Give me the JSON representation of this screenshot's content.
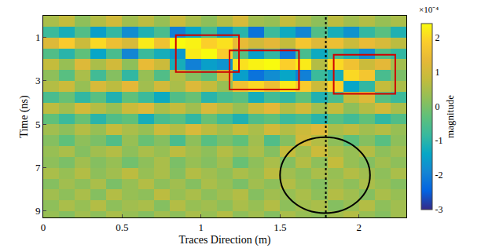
{
  "chart_data": {
    "type": "heatmap",
    "x_label": "Traces Direction (m)",
    "y_label": "Time (ns)",
    "colorbar_label": "magnitude",
    "colorbar_exponent": "×10⁻⁴",
    "grid": false,
    "xlim": [
      0,
      2.3
    ],
    "xticks": [
      0,
      0.5,
      1,
      1.5,
      2
    ],
    "ylim": [
      9.3,
      0
    ],
    "yticks": [
      1,
      3,
      5,
      7,
      9
    ],
    "zlim": [
      -3,
      2.4
    ],
    "zticks": [
      -3,
      -2,
      -1,
      0,
      1,
      2
    ],
    "x": [
      0.05,
      0.15,
      0.25,
      0.35,
      0.45,
      0.55,
      0.65,
      0.75,
      0.85,
      0.95,
      1.05,
      1.15,
      1.25,
      1.35,
      1.45,
      1.55,
      1.65,
      1.75,
      1.85,
      1.95,
      2.05,
      2.15,
      2.25
    ],
    "y": [
      0.25,
      0.75,
      1.25,
      1.75,
      2.25,
      2.75,
      3.25,
      3.75,
      4.25,
      4.75,
      5.25,
      5.75,
      6.25,
      6.75,
      7.25,
      7.75,
      8.25,
      8.75,
      9.25
    ],
    "z": [
      [
        0.5,
        0.8,
        0.2,
        0.6,
        1.0,
        0.4,
        0.7,
        0.3,
        0.9,
        0.5,
        0.2,
        0.6,
        1.1,
        0.4,
        0.3,
        0.8,
        0.5,
        0.2,
        0.7,
        0.4,
        0.6,
        0.3,
        0.5
      ],
      [
        -0.8,
        -1.2,
        -0.5,
        -1.5,
        -0.9,
        -1.8,
        -1.1,
        -0.6,
        -2.0,
        -1.4,
        -0.7,
        -1.6,
        -1.0,
        -2.2,
        -0.8,
        -1.3,
        -1.9,
        -0.5,
        -1.2,
        -1.7,
        -0.9,
        -0.4,
        -1.1
      ],
      [
        1.2,
        1.8,
        0.9,
        2.0,
        1.5,
        1.1,
        2.2,
        1.6,
        2.4,
        2.3,
        1.9,
        2.1,
        1.4,
        1.0,
        1.3,
        0.8,
        1.7,
        1.2,
        1.5,
        0.9,
        1.4,
        1.1,
        0.7
      ],
      [
        -0.5,
        -1.0,
        -0.3,
        -1.4,
        -0.6,
        -1.9,
        -0.8,
        -1.2,
        -1.6,
        2.2,
        2.4,
        1.8,
        -0.4,
        -1.5,
        -0.9,
        -2.1,
        -0.6,
        -1.3,
        -0.7,
        -1.1,
        -1.8,
        -0.5,
        -0.9
      ],
      [
        0.8,
        0.3,
        1.2,
        0.5,
        1.0,
        0.2,
        1.4,
        0.9,
        -1.2,
        -2.0,
        -1.5,
        -1.7,
        2.1,
        2.3,
        2.4,
        1.9,
        2.2,
        0.6,
        2.0,
        1.6,
        0.9,
        1.3,
        0.4
      ],
      [
        0.2,
        -0.4,
        0.5,
        -0.7,
        0.1,
        -0.9,
        0.3,
        -0.5,
        0.6,
        0.1,
        -0.3,
        1.0,
        -1.5,
        -2.2,
        -1.8,
        -1.4,
        -2.0,
        -0.8,
        -1.2,
        2.0,
        1.7,
        -0.6,
        0.0
      ],
      [
        0.6,
        0.9,
        0.3,
        1.1,
        0.7,
        1.3,
        0.4,
        1.0,
        0.5,
        1.2,
        0.8,
        0.3,
        1.6,
        2.0,
        1.5,
        2.2,
        1.8,
        0.9,
        1.9,
        -1.4,
        -0.9,
        0.8,
        0.5
      ],
      [
        -0.6,
        -0.2,
        -0.9,
        -0.4,
        -1.1,
        -0.3,
        -0.8,
        -1.3,
        -0.5,
        -0.2,
        -1.0,
        -0.6,
        -0.4,
        -1.2,
        -0.7,
        -0.9,
        -0.3,
        -1.1,
        -0.6,
        0.8,
        1.2,
        -0.4,
        -0.8
      ],
      [
        0.7,
        0.4,
        1.0,
        0.6,
        0.3,
        0.9,
        1.2,
        0.5,
        0.8,
        0.4,
        1.1,
        0.7,
        0.3,
        0.9,
        1.3,
        0.6,
        1.0,
        0.4,
        0.8,
        0.2,
        0.6,
        1.0,
        0.5
      ],
      [
        -0.3,
        -0.8,
        -0.2,
        -1.0,
        -0.5,
        -0.3,
        -1.2,
        -0.6,
        -0.4,
        -0.9,
        -0.2,
        -0.7,
        -1.1,
        -0.5,
        -0.3,
        -0.8,
        -0.6,
        -1.0,
        -0.4,
        -0.7,
        -0.3,
        -0.9,
        -0.5
      ],
      [
        0.4,
        0.2,
        0.6,
        0.3,
        0.8,
        0.5,
        0.3,
        0.9,
        0.6,
        1.1,
        0.7,
        0.4,
        0.8,
        0.5,
        1.0,
        0.6,
        0.9,
        1.2,
        0.5,
        0.7,
        0.4,
        0.6,
        0.3
      ],
      [
        0.1,
        -0.3,
        0.2,
        0.0,
        -0.5,
        0.3,
        -0.2,
        0.1,
        -0.6,
        0.2,
        -0.4,
        0.0,
        -0.3,
        0.4,
        -0.5,
        0.1,
        1.0,
        0.6,
        0.2,
        -0.3,
        0.1,
        -0.4,
        0.2
      ],
      [
        0.3,
        0.5,
        0.1,
        0.4,
        0.6,
        0.2,
        0.5,
        0.3,
        0.7,
        0.4,
        0.2,
        0.6,
        0.3,
        0.5,
        0.1,
        0.8,
        0.4,
        0.9,
        0.5,
        0.3,
        0.6,
        0.2,
        0.4
      ],
      [
        0.2,
        0.0,
        0.4,
        0.1,
        0.3,
        -0.1,
        0.2,
        0.5,
        0.0,
        0.3,
        0.1,
        0.4,
        -0.2,
        0.2,
        0.5,
        0.1,
        0.6,
        0.2,
        0.8,
        0.3,
        0.1,
        0.4,
        0.2
      ],
      [
        0.5,
        0.3,
        0.6,
        0.2,
        0.4,
        0.7,
        0.3,
        0.5,
        0.1,
        0.6,
        0.4,
        0.2,
        0.5,
        0.3,
        0.7,
        0.4,
        0.2,
        0.5,
        0.3,
        0.6,
        0.4,
        0.2,
        0.5
      ],
      [
        0.1,
        0.4,
        0.2,
        0.5,
        0.0,
        0.3,
        0.6,
        0.2,
        0.4,
        0.1,
        0.5,
        0.3,
        0.0,
        0.4,
        0.2,
        0.6,
        0.3,
        0.1,
        0.4,
        0.2,
        0.5,
        0.3,
        0.1
      ],
      [
        0.4,
        0.2,
        0.5,
        0.1,
        0.6,
        0.3,
        0.2,
        0.7,
        0.3,
        0.5,
        0.2,
        0.4,
        0.6,
        0.1,
        0.4,
        0.3,
        0.5,
        0.2,
        0.6,
        0.4,
        0.1,
        0.5,
        0.3
      ],
      [
        0.2,
        0.5,
        0.3,
        0.6,
        0.2,
        0.4,
        0.5,
        0.1,
        0.6,
        0.3,
        0.4,
        0.2,
        0.5,
        0.3,
        0.6,
        0.2,
        0.4,
        0.5,
        0.1,
        0.3,
        0.6,
        0.2,
        0.4
      ],
      [
        0.3,
        0.1,
        0.4,
        0.2,
        0.5,
        0.3,
        0.1,
        0.4,
        0.2,
        0.5,
        0.3,
        0.6,
        0.2,
        0.4,
        0.1,
        0.5,
        0.3,
        0.2,
        0.4,
        0.6,
        0.3,
        0.1,
        0.4
      ]
    ],
    "boxes": [
      {
        "x": [
          0.84,
          1.24
        ],
        "y": [
          0.9,
          2.6
        ]
      },
      {
        "x": [
          1.18,
          1.62
        ],
        "y": [
          1.6,
          3.4
        ]
      },
      {
        "x": [
          1.84,
          2.23
        ],
        "y": [
          1.8,
          3.6
        ]
      }
    ],
    "ellipse": {
      "x": [
        1.5,
        2.07
      ],
      "y": [
        5.6,
        9.1
      ]
    },
    "dotted_line_x": 1.79
  }
}
